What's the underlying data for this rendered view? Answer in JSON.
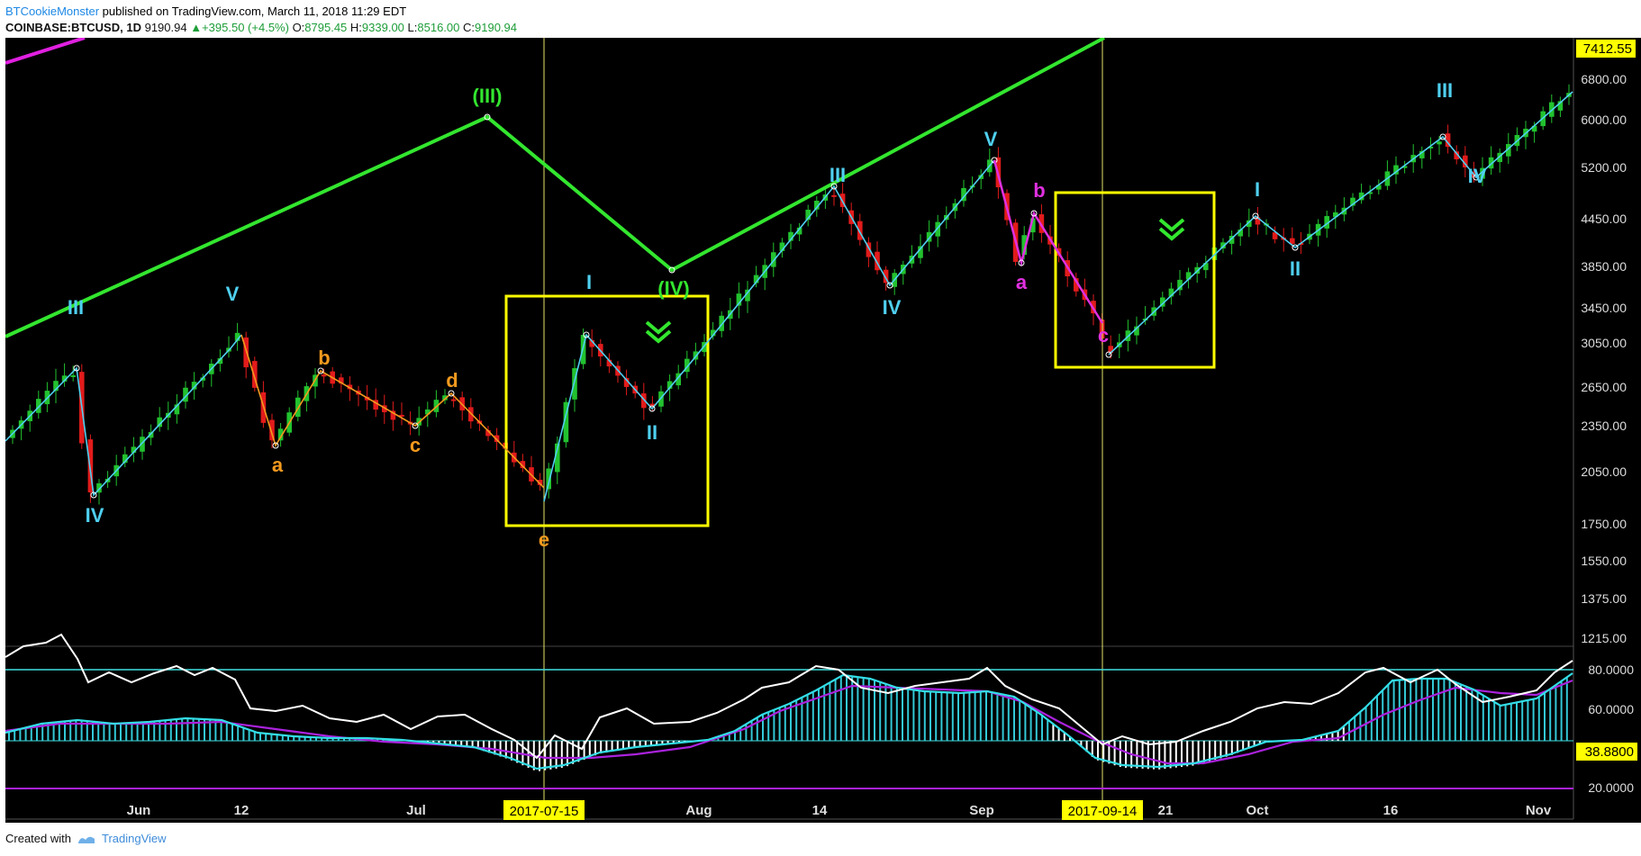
{
  "header": {
    "author": "BTCookieMonster",
    "published": "published on TradingView.com, March 11, 2018 11:29 EDT",
    "symbol": "COINBASE:BTCUSD, 1D",
    "last": "9190.94",
    "change": "▲+395.50 (+4.5%)",
    "o_label": "O:",
    "o": "8795.45",
    "h_label": "H:",
    "h": "9339.00",
    "l_label": "L:",
    "l": "8516.00",
    "c_label": "C:",
    "c": "9190.94"
  },
  "footer": {
    "created_with": "Created with",
    "brand": "TradingView"
  },
  "chart_data": [
    {
      "type": "candlestick",
      "price_axis_labels": [
        "6800.00",
        "6000.00",
        "5200.00",
        "4450.00",
        "3850.00",
        "3450.00",
        "3050.00",
        "2650.00",
        "2350.00",
        "2050.00",
        "1750.00",
        "1550.00",
        "1375.00",
        "1215.00"
      ],
      "current_price_label": "7412.55",
      "date_axis_labels": [
        "Jun",
        "12",
        "Jul",
        "Aug",
        "14",
        "Sep",
        "21",
        "Oct",
        "16",
        "Nov"
      ],
      "highlighted_dates": [
        "2017-07-15",
        "2017-09-14"
      ],
      "colors": {
        "up": "#22c22f",
        "down": "#e21b1b",
        "background": "#000000",
        "highlight": "#ffff00"
      },
      "elliott_wave_labels": {
        "cyan": [
          "III",
          "IV",
          "V",
          "I",
          "II",
          "III",
          "IV",
          "V",
          "I",
          "II",
          "III",
          "IV"
        ],
        "orange": [
          "a",
          "b",
          "c",
          "d",
          "e"
        ],
        "magenta": [
          "b",
          "a",
          "c"
        ],
        "green": [
          "(III)",
          "(IV)"
        ]
      },
      "annotations": [
        "two yellow rectangles marking consolidation zones",
        "double green chevrons pointing down"
      ]
    },
    {
      "type": "line",
      "name": "oscillator",
      "y_axis_labels": [
        "80.0000",
        "60.0000",
        "20.0000"
      ],
      "current_value_label": "38.8800",
      "colors": {
        "main": "#ffffff",
        "fast": "#33dde6",
        "slow": "#aa22dd",
        "histogram": "#33c9d6",
        "level": "#40e0e0"
      }
    }
  ]
}
